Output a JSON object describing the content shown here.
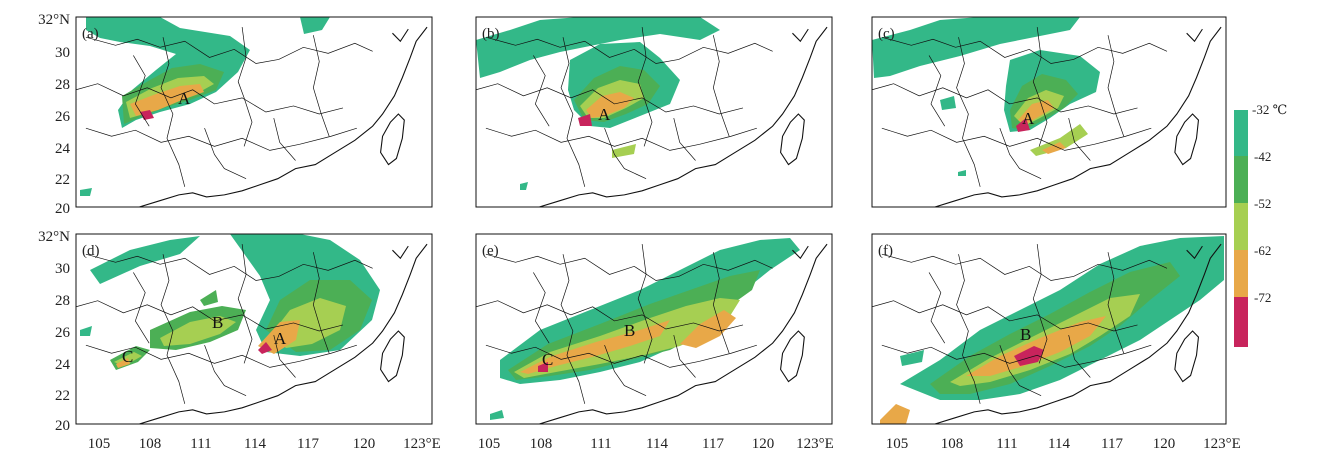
{
  "figure": {
    "lat_ticks": [
      "32°N",
      "30",
      "28",
      "26",
      "24",
      "22",
      "20"
    ],
    "lon_ticks": [
      "105",
      "108",
      "111",
      "114",
      "117",
      "120",
      "123°E"
    ]
  },
  "panels": [
    {
      "label": "(a)",
      "systems": [
        "A"
      ]
    },
    {
      "label": "(b)",
      "systems": [
        "A"
      ]
    },
    {
      "label": "(c)",
      "systems": [
        "A"
      ]
    },
    {
      "label": "(d)",
      "systems": [
        "C",
        "B",
        "A"
      ]
    },
    {
      "label": "(e)",
      "systems": [
        "C",
        "B"
      ]
    },
    {
      "label": "(f)",
      "systems": [
        "B"
      ]
    }
  ],
  "colorbar": {
    "labels": [
      "-32 ℃",
      "-42",
      "-52",
      "-62",
      "-72"
    ],
    "colors": [
      "#33b888",
      "#4caf55",
      "#a6cf52",
      "#e8a848",
      "#c8245c"
    ]
  }
}
